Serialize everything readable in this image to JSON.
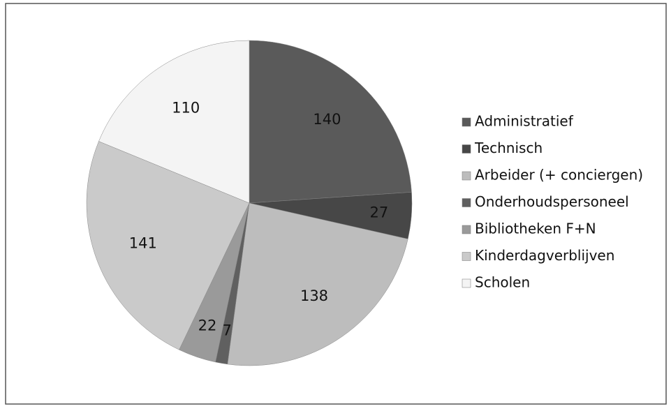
{
  "chart_data": {
    "type": "pie",
    "categories": [
      "Administratief",
      "Technisch",
      "Arbeider (+ conciergen)",
      "Onderhoudspersoneel",
      "Bibliotheken F+N",
      "Kinderdagverblijven",
      "Scholen"
    ],
    "values": [
      140,
      27,
      138,
      7,
      22,
      141,
      110
    ],
    "colors": [
      "#5a5a5a",
      "#474747",
      "#bdbdbd",
      "#606060",
      "#9a9a9a",
      "#cacaca",
      "#f4f4f4"
    ],
    "legend": "right"
  }
}
